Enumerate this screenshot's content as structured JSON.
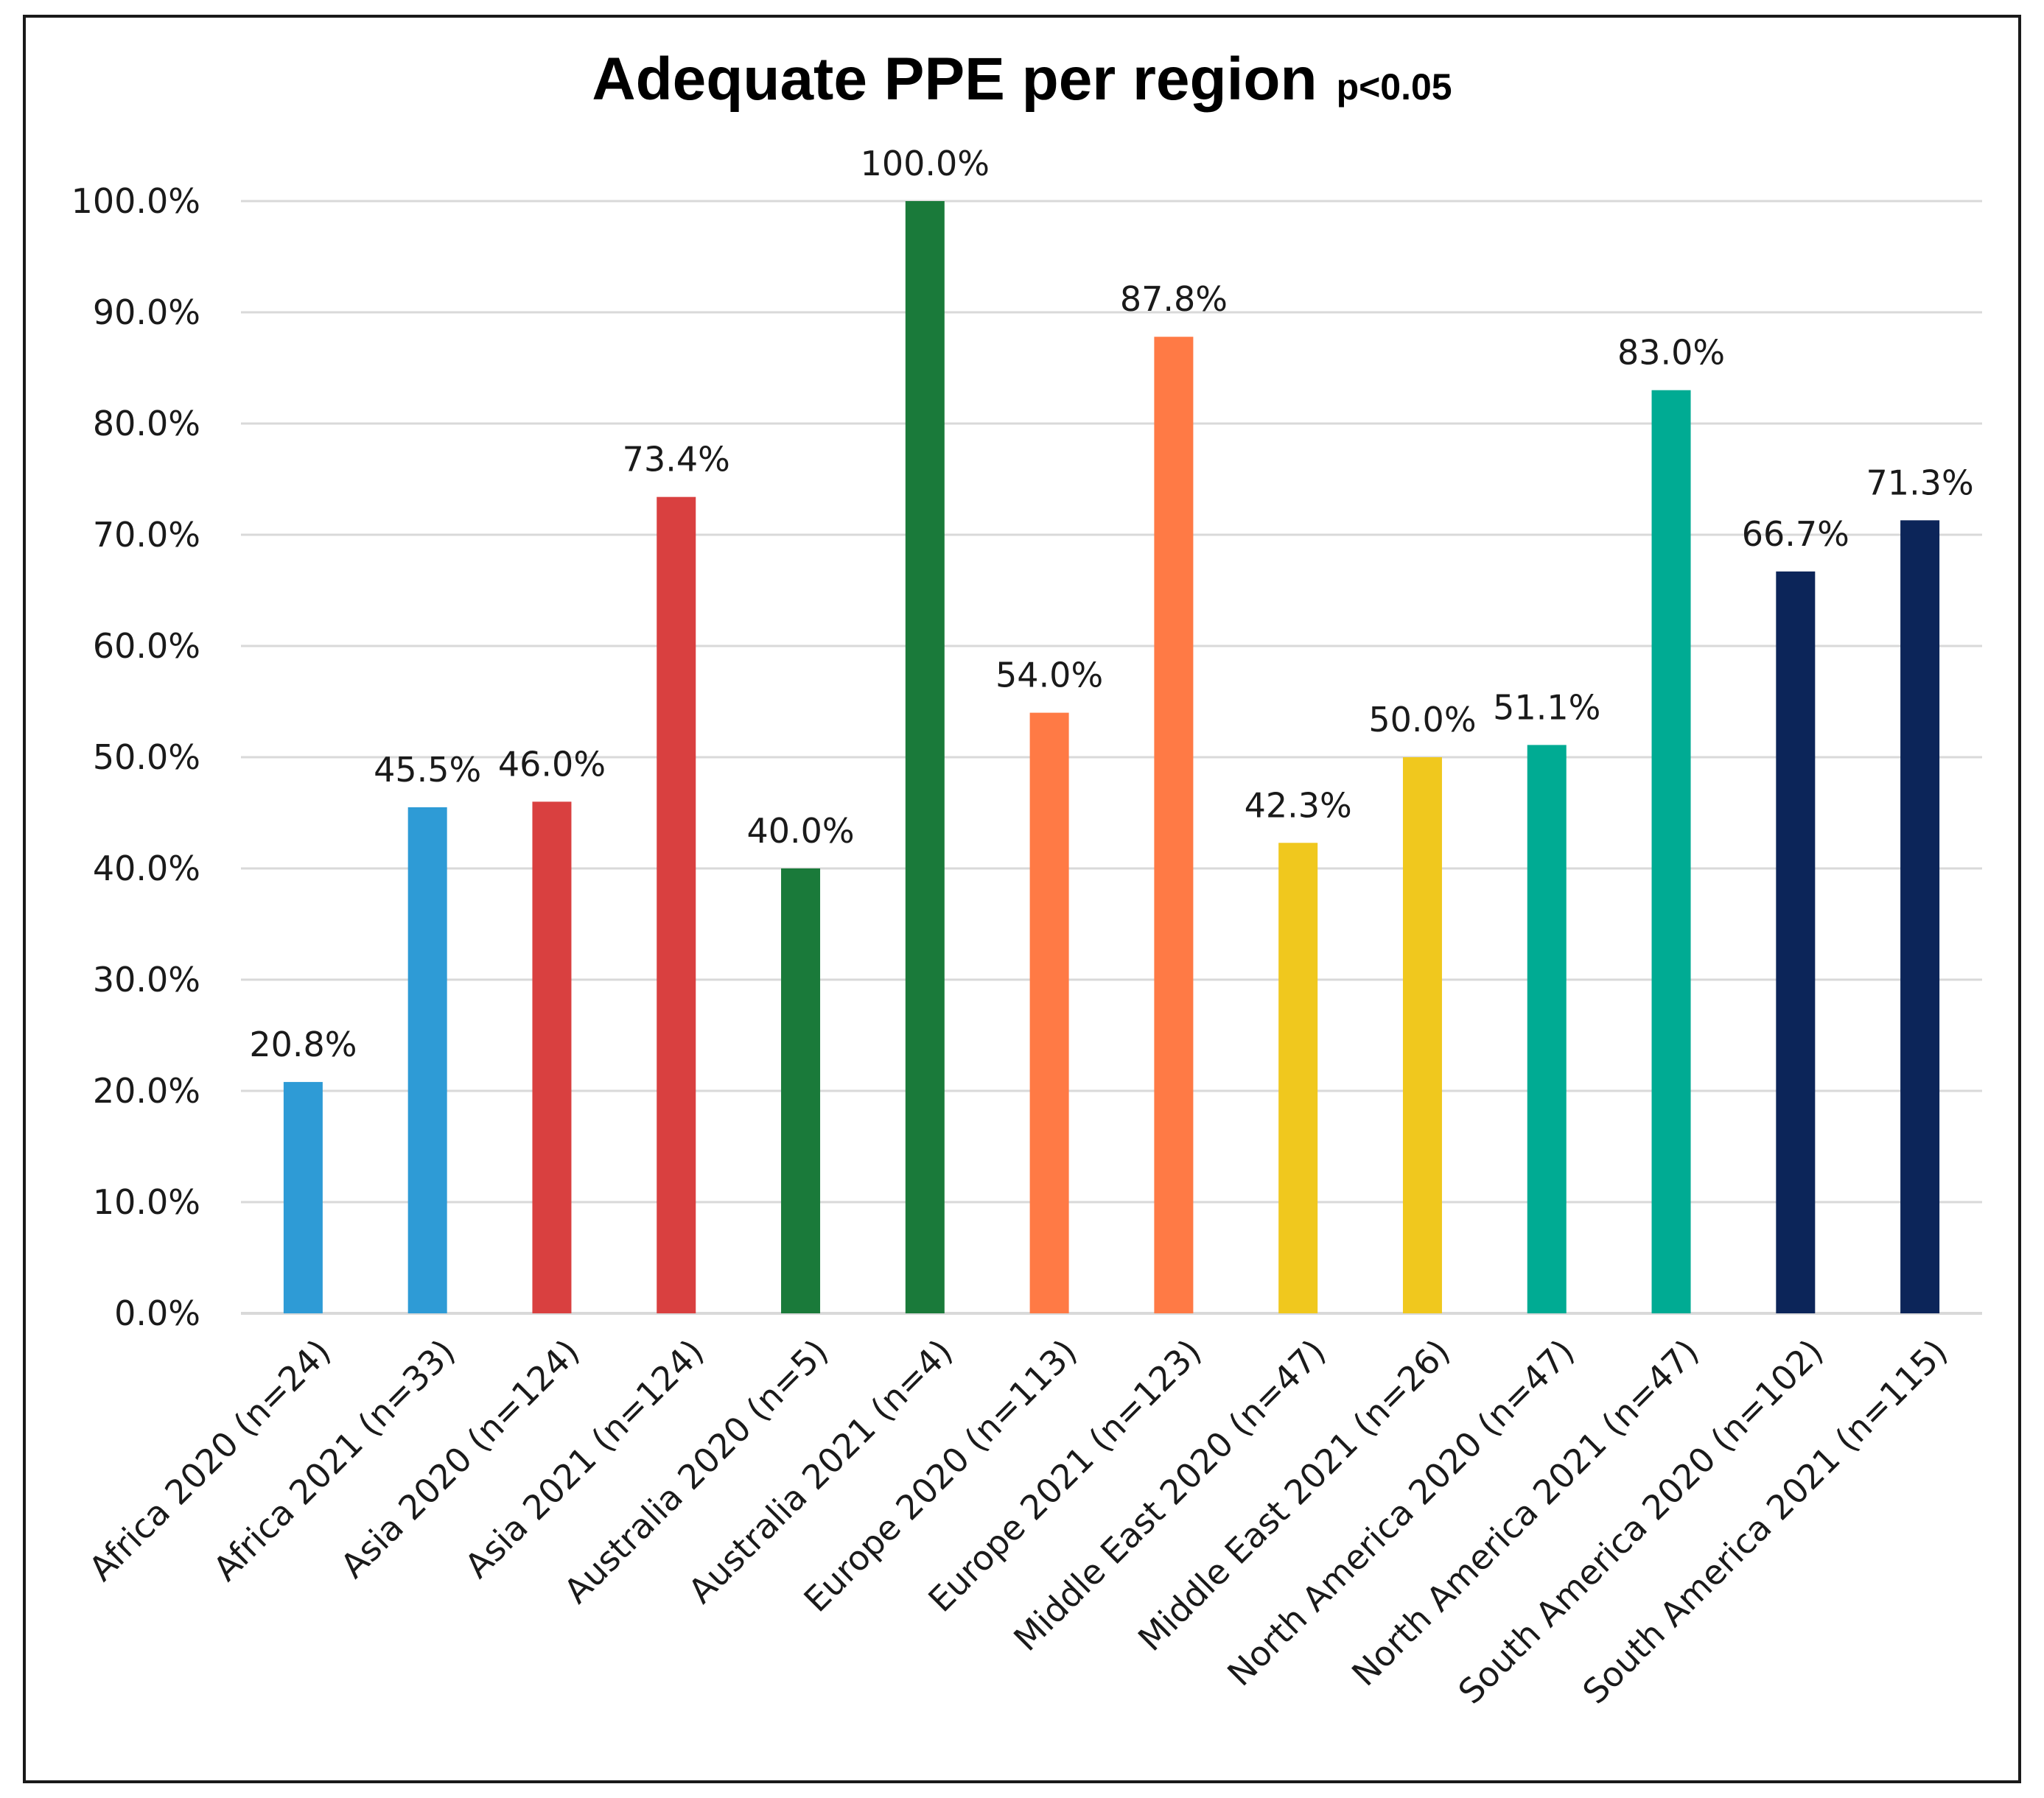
{
  "chart_data": {
    "type": "bar",
    "title": "Adequate PPE per region",
    "subtitle": "p<0.05",
    "xlabel": "",
    "ylabel": "",
    "ylim": [
      0,
      100
    ],
    "y_ticks": [
      0,
      10,
      20,
      30,
      40,
      50,
      60,
      70,
      80,
      90,
      100
    ],
    "y_tick_format": "percent_1dp",
    "grid": true,
    "legend": "none",
    "categories": [
      "Africa 2020 (n=24)",
      "Africa 2021 (n=33)",
      "Asia 2020 (n=124)",
      "Asia 2021 (n=124)",
      "Australia 2020 (n=5)",
      "Australia 2021 (n=4)",
      "Europe 2020 (n=113)",
      "Europe 2021 (n=123)",
      "Middle East 2020 (n=47)",
      "Middle East 2021 (n=26)",
      "North America 2020 (n=47)",
      "North America 2021 (n=47)",
      "South America 2020 (n=102)",
      "South America 2021 (n=115)"
    ],
    "values": [
      20.8,
      45.5,
      46.0,
      73.4,
      40.0,
      100.0,
      54.0,
      87.8,
      42.3,
      50.0,
      51.1,
      83.0,
      66.7,
      71.3
    ],
    "data_labels": [
      "20.8%",
      "45.5%",
      "46.0%",
      "73.4%",
      "40.0%",
      "100.0%",
      "54.0%",
      "87.8%",
      "42.3%",
      "50.0%",
      "51.1%",
      "83.0%",
      "66.7%",
      "71.3%"
    ],
    "bar_colors": [
      "#2e9bd6",
      "#2e9bd6",
      "#d94040",
      "#d94040",
      "#1a7a3a",
      "#1a7a3a",
      "#ff7a45",
      "#ff7a45",
      "#f0c81e",
      "#f0c81e",
      "#00ab93",
      "#00ab93",
      "#0c2559",
      "#0c2559"
    ]
  }
}
